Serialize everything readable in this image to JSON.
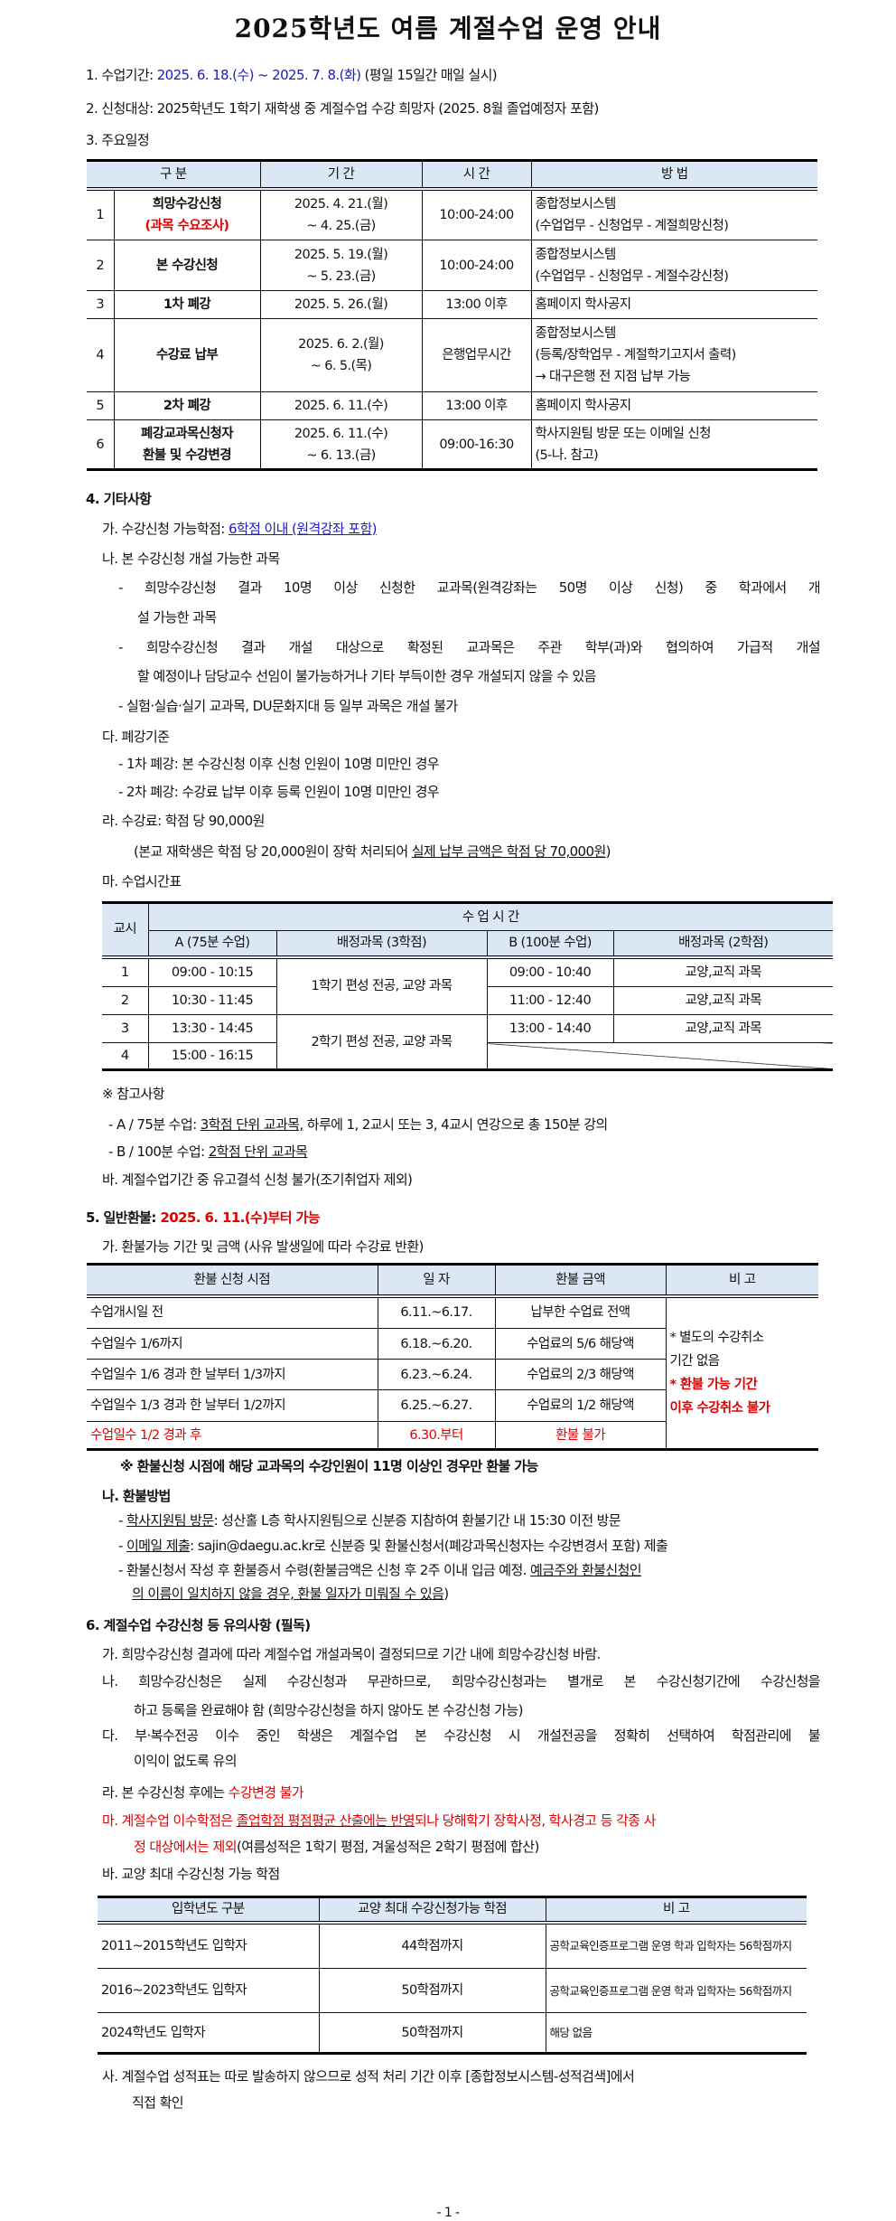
{
  "title": "2025학년도 여름 계절수업 운영 안내",
  "s1": {
    "label": "1. 수업기간: ",
    "date": "2025. 6. 18.(수) ~ 2025. 7. 8.(화)",
    "note": " (평일 15일간 매일 실시)"
  },
  "s2": {
    "label": "2. 신청대상: ",
    "text": "2025학년도 1학기 재학생 중 계절수업 수강 희망자 (2025. 8월 졸업예정자 포함)"
  },
  "s3": {
    "label": "3. 주요일정",
    "headers": [
      "구 분",
      "기 간",
      "시 간",
      "방 법"
    ],
    "rows": [
      {
        "no": "1",
        "name": "희망수강신청",
        "sub": "(과목 수요조사)",
        "period": [
          "2025. 4. 21.(월)",
          "~ 4. 25.(금)"
        ],
        "time": "10:00-24:00",
        "method": [
          "종합정보시스템",
          "(수업업무 - 신청업무 - 계절희망신청)"
        ]
      },
      {
        "no": "2",
        "name": "본 수강신청",
        "period": [
          "2025. 5. 19.(월)",
          "~ 5. 23.(금)"
        ],
        "time": "10:00-24:00",
        "method": [
          "종합정보시스템",
          "(수업업무 - 신청업무 - 계절수강신청)"
        ]
      },
      {
        "no": "3",
        "name": "1차 폐강",
        "period": [
          "2025. 5. 26.(월)"
        ],
        "time": "13:00 이후",
        "method": [
          "홈페이지 학사공지"
        ]
      },
      {
        "no": "4",
        "name": "수강료 납부",
        "period": [
          "2025. 6. 2.(월)",
          "~ 6. 5.(목)"
        ],
        "time": "은행업무시간",
        "method": [
          "종합정보시스템",
          "(등록/장학업무 - 계절학기고지서 출력)",
          "→ 대구은행 전 지점 납부 가능"
        ]
      },
      {
        "no": "5",
        "name": "2차 폐강",
        "period": [
          "2025. 6. 11.(수)"
        ],
        "time": "13:00 이후",
        "method": [
          "홈페이지 학사공지"
        ]
      },
      {
        "no": "6",
        "name": "폐강교과목신청자",
        "name2": "환불 및 수강변경",
        "period": [
          "2025. 6. 11.(수)",
          "~ 6. 13.(금)"
        ],
        "time": "09:00-16:30",
        "method": [
          "학사지원팀 방문 또는 이메일 신청",
          "(5-나. 참고)"
        ]
      }
    ]
  },
  "s4": {
    "label": "4. 기타사항",
    "ga": {
      "label": "가. 수강신청 가능학점: ",
      "link": "6학점 이내 (원격강좌 포함)"
    },
    "na": {
      "label": "나. 본 수강신청 개설 가능한 과목",
      "b1": [
        "- 희망수강신청 결과 10명 이상 신청한 교과목(원격강좌는 50명 이상 신청) 중 학과에서 개",
        "설 가능한 과목"
      ],
      "b2": [
        "- 희망수강신청 결과 개설 대상으로 확정된 교과목은 주관 학부(과)와 협의하여 가급적 개설",
        "할 예정이나 담당교수 선임이 불가능하거나 기타 부득이한 경우 개설되지 않을 수 있음"
      ],
      "b3": "- 실험·실습·실기 교과목, DU문화지대 등 일부 과목은 개설 불가"
    },
    "da": {
      "label": "다. 폐강기준",
      "b1": "- 1차 폐강: 본 수강신청 이후 신청 인원이 10명 미만인 경우",
      "b2": "- 2차 폐강: 수강료 납부 이후 등록 인원이 10명 미만인 경우"
    },
    "ra": {
      "label": "라. 수강료: 학점 당 90,000원",
      "note_a": "(본교 재학생은 학점 당 20,000원이 장학 처리되어 ",
      "note_u": "실제 납부 금액은 학점 당 70,000원",
      "note_b": ")"
    },
    "ma": {
      "label": "마. 수업시간표"
    },
    "timetable": {
      "h_period": "교시",
      "h_time": "수 업 시 간",
      "h_a": "A (75분 수업)",
      "h_a_sub": "배정과목 (3학점)",
      "h_b": "B (100분 수업)",
      "h_b_sub": "배정과목 (2학점)",
      "rows": [
        {
          "no": "1",
          "a": "09:00 - 10:15",
          "b": "09:00 - 10:40",
          "b_sub": "교양,교직 과목"
        },
        {
          "no": "2",
          "a": "10:30 - 11:45",
          "b": "11:00 - 12:40",
          "b_sub": "교양,교직 과목"
        },
        {
          "no": "3",
          "a": "13:30 - 14:45",
          "b": "13:00 - 14:40",
          "b_sub": "교양,교직 과목"
        },
        {
          "no": "4",
          "a": "15:00 - 16:15"
        }
      ],
      "a_sub_1": "1학기 편성 전공, 교양 과목",
      "a_sub_2": "2학기 편성 전공, 교양 과목"
    },
    "ref": {
      "label": "※ 참고사항",
      "a": {
        "pre": "- A / 75분 수업: ",
        "u": "3학점 단위 교과목,",
        "post": " 하루에 1, 2교시 또는 3, 4교시 연강으로 총 150분 강의"
      },
      "b": {
        "pre": "- B / 100분 수업: ",
        "u": "2학점 단위 교과목"
      }
    },
    "ba": "바. 계절수업기간 중 유고결석 신청 불가(조기취업자 제외)"
  },
  "s5": {
    "label": "5. 일반환불: ",
    "date": "2025. 6. 11.(수)부터 가능",
    "ga": "가. 환불가능 기간 및 금액 (사유 발생일에 따라 수강료 반환)",
    "headers": [
      "환불 신청 시점",
      "일 자",
      "환불 금액",
      "비 고"
    ],
    "rows": [
      {
        "when": "수업개시일 전",
        "date": "6.11.~6.17.",
        "amount": "납부한 수업료 전액"
      },
      {
        "when": "수업일수 1/6까지",
        "date": "6.18.~6.20.",
        "amount": "수업료의 5/6 해당액"
      },
      {
        "when": "수업일수 1/6 경과 한 날부터 1/3까지",
        "date": "6.23.~6.24.",
        "amount": "수업료의 2/3 해당액"
      },
      {
        "when": "수업일수 1/3 경과 한 날부터 1/2까지",
        "date": "6.25.~6.27.",
        "amount": "수업료의 1/2 해당액"
      },
      {
        "when": "수업일수 1/2 경과 후",
        "date": "6.30.부터",
        "amount": "환불 불가"
      }
    ],
    "remark": [
      "* 별도의 수강취소",
      "기간 없음",
      "* 환불 가능 기간",
      "이후 수강취소 불가"
    ],
    "note": "※ 환불신청 시점에 해당 교과목의 수강인원이 11명 이상인 경우만 환불 가능",
    "na": {
      "label": "나. 환불방법",
      "b1": {
        "pre": "- ",
        "u": "학사지원팀 방문",
        "post": ": 성산홀 L층 학사지원팀으로 신분증 지참하여 환불기간 내 15:30 이전 방문"
      },
      "b2": {
        "pre": "- ",
        "u": "이메일 제출",
        "post": ": sajin@daegu.ac.kr로 신분증 및 환불신청서(폐강과목신청자는 수강변경서 포함) 제출"
      },
      "b3": {
        "pre": "- 환불신청서 작성 후 환불증서 수령(환불금액은 신청 후 2주 이내 입금 예정. ",
        "u": "예금주와 환불신청인",
        "u2": "의 이름이 일치하지 않을 경우, 환불 일자가 미뤄질 수 있음",
        "post": ")"
      }
    }
  },
  "s6": {
    "label": "6. 계절수업 수강신청 등 유의사항 (필독)",
    "ga": "가. 희망수강신청 결과에 따라 계절수업 개설과목이 결정되므로 기간 내에 희망수강신청 바람.",
    "na": [
      "나. 희망수강신청은 실제 수강신청과 무관하므로, 희망수강신청과는 별개로 본 수강신청기간에 수강신청을",
      "하고 등록을 완료해야 함 (희망수강신청을 하지 않아도 본 수강신청 가능)"
    ],
    "da": [
      "다. 부·복수전공 이수 중인 학생은 계절수업 본 수강신청 시 개설전공을 정확히 선택하여 학점관리에 불",
      "이익이 없도록 유의"
    ],
    "ra": {
      "pre": "라. 본 수강신청 후에는 ",
      "red": "수강변경 불가"
    },
    "ma": {
      "pre": "마. 계절수업 이수학점은 ",
      "u": "졸업학점 평점평균 산출에는 반영",
      "post": "되나 당해학기 장학사정, 학사경고 등 각종 사",
      "l2_red": "정 대상에서는 제외",
      "l2_rest": "(여름성적은 1학기 평점, 겨울성적은 2학기 평점에 합산)"
    },
    "ba": "바. 교양 최대 수강신청 가능 학점",
    "headers": [
      "입학년도 구분",
      "교양 최대 수강신청가능 학점",
      "비 고"
    ],
    "rows": [
      {
        "year": "2011~2015학년도 입학자",
        "credits": "44학점까지",
        "note": "공학교육인증프로그램 운영 학과 입학자는 56학점까지"
      },
      {
        "year": "2016~2023학년도 입학자",
        "credits": "50학점까지",
        "note": "공학교육인증프로그램 운영 학과 입학자는 56학점까지"
      },
      {
        "year": "2024학년도 입학자",
        "credits": "50학점까지",
        "note": "해당 없음"
      }
    ],
    "sa": [
      "사. 계절수업 성적표는 따로 발송하지 않으므로 성적 처리 기간 이후 [종합정보시스템-성적검색]에서",
      "직접 확인"
    ]
  },
  "page_number": "- 1 -"
}
